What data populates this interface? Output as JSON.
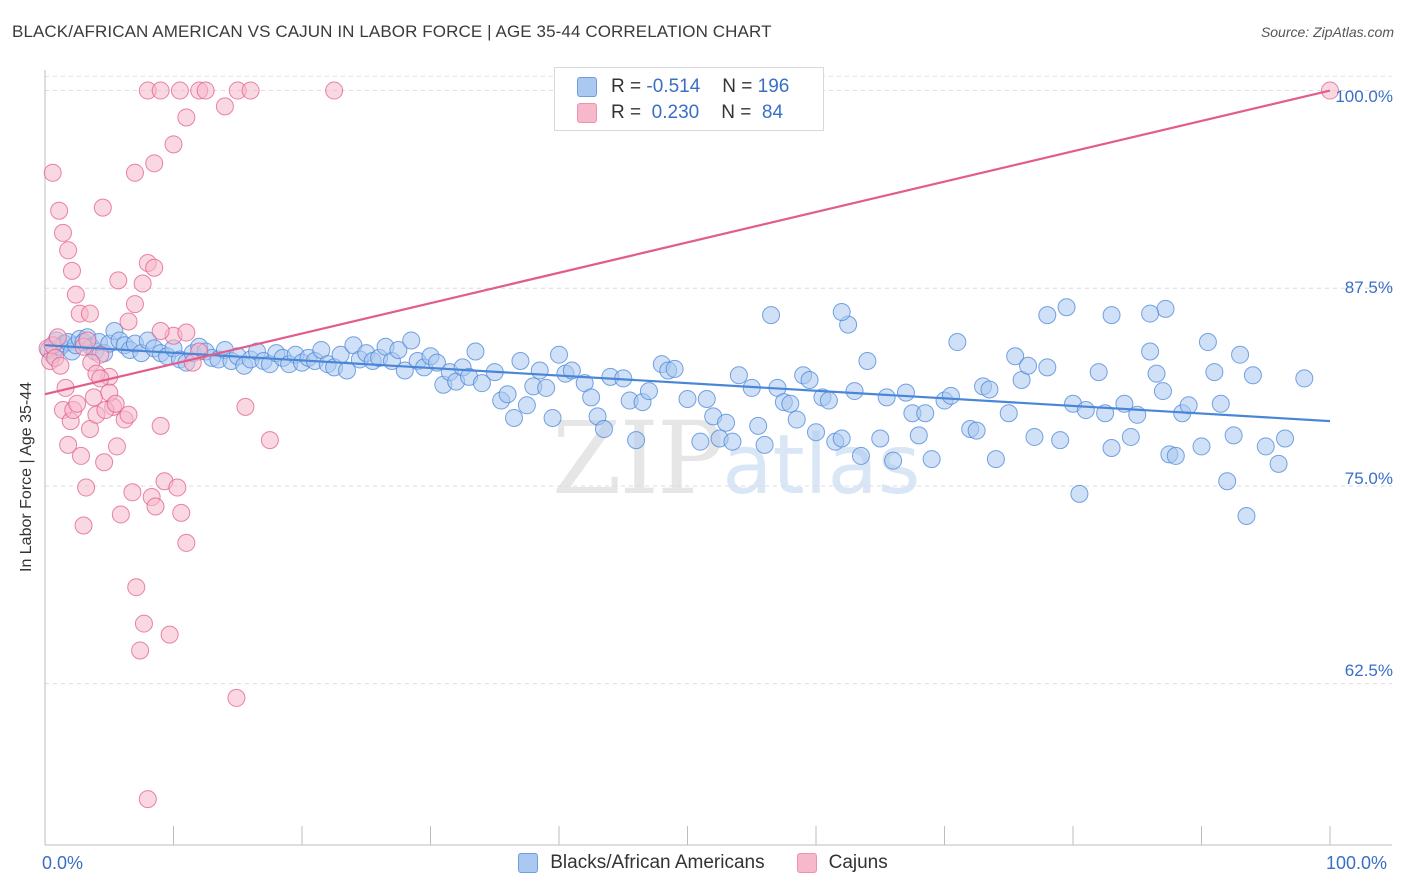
{
  "title": "BLACK/AFRICAN AMERICAN VS CAJUN IN LABOR FORCE | AGE 35-44 CORRELATION CHART",
  "source": "Source: ZipAtlas.com",
  "watermark": {
    "zip": "ZIP",
    "atlas": "atlas"
  },
  "legend": {
    "rows": [
      {
        "r_label": "R = ",
        "r_value": "-0.514",
        "n_label": "N = ",
        "n_value": "196",
        "color": "#aac8f0"
      },
      {
        "r_label": "R = ",
        "r_value": "0.230",
        "n_label": "N = ",
        "n_value": "84",
        "color": "#f6b8ca"
      }
    ]
  },
  "bottom_legend": [
    {
      "label": "Blacks/African Americans",
      "color": "#aac8f0"
    },
    {
      "label": "Cajuns",
      "color": "#f6b8ca"
    }
  ],
  "chart_data": {
    "type": "scatter",
    "title": "BLACK/AFRICAN AMERICAN VS CAJUN IN LABOR FORCE | AGE 35-44 CORRELATION CHART",
    "xlabel": "",
    "ylabel": "In Labor Force | Age 35-44",
    "xlim": [
      0,
      100
    ],
    "ylim": [
      52.3,
      101.3
    ],
    "x_tick_labels": [
      "0.0%",
      "100.0%"
    ],
    "y_ticks": [
      62.5,
      75.0,
      87.5,
      100.0
    ],
    "y_tick_labels": [
      "62.5%",
      "75.0%",
      "87.5%",
      "100.0%"
    ],
    "series": [
      {
        "name": "Blacks/African Americans",
        "color": "#4a86d8",
        "fill": "#aac8f0",
        "trend": {
          "x": [
            0,
            100
          ],
          "y": [
            83.9,
            79.1
          ]
        },
        "points": [
          [
            0.3,
            83.6
          ],
          [
            0.6,
            83.3
          ],
          [
            0.9,
            84.2
          ],
          [
            1.2,
            83.8
          ],
          [
            1.5,
            84.0
          ],
          [
            1.8,
            84.1
          ],
          [
            2.1,
            83.5
          ],
          [
            2.4,
            83.9
          ],
          [
            2.7,
            84.3
          ],
          [
            3.0,
            84.1
          ],
          [
            3.3,
            84.4
          ],
          [
            3.6,
            83.8
          ],
          [
            3.9,
            83.5
          ],
          [
            4.2,
            84.1
          ],
          [
            4.6,
            83.4
          ],
          [
            5.0,
            84.0
          ],
          [
            5.4,
            84.8
          ],
          [
            5.8,
            84.2
          ],
          [
            6.2,
            83.9
          ],
          [
            6.6,
            83.6
          ],
          [
            7.0,
            84.0
          ],
          [
            7.5,
            83.4
          ],
          [
            8.0,
            84.2
          ],
          [
            8.5,
            83.7
          ],
          [
            9.0,
            83.4
          ],
          [
            9.5,
            83.2
          ],
          [
            10.0,
            83.7
          ],
          [
            10.5,
            83.0
          ],
          [
            11.0,
            82.8
          ],
          [
            11.5,
            83.4
          ],
          [
            12.0,
            83.8
          ],
          [
            12.5,
            83.5
          ],
          [
            13.0,
            83.1
          ],
          [
            13.5,
            83.0
          ],
          [
            14.0,
            83.6
          ],
          [
            14.5,
            82.9
          ],
          [
            15.0,
            83.2
          ],
          [
            15.5,
            82.6
          ],
          [
            16.0,
            83.0
          ],
          [
            16.5,
            83.5
          ],
          [
            17.0,
            82.9
          ],
          [
            17.5,
            82.7
          ],
          [
            18.0,
            83.4
          ],
          [
            18.5,
            83.1
          ],
          [
            19.0,
            82.7
          ],
          [
            19.5,
            83.3
          ],
          [
            20.0,
            82.8
          ],
          [
            20.5,
            83.1
          ],
          [
            21.0,
            82.9
          ],
          [
            21.5,
            83.6
          ],
          [
            22.0,
            82.7
          ],
          [
            22.5,
            82.5
          ],
          [
            23.0,
            83.3
          ],
          [
            23.5,
            82.3
          ],
          [
            24.0,
            83.9
          ],
          [
            24.5,
            83.0
          ],
          [
            25.0,
            83.4
          ],
          [
            25.5,
            82.9
          ],
          [
            26.0,
            83.1
          ],
          [
            26.5,
            83.8
          ],
          [
            27.0,
            82.9
          ],
          [
            27.5,
            83.6
          ],
          [
            28.0,
            82.3
          ],
          [
            28.5,
            84.2
          ],
          [
            29.0,
            82.9
          ],
          [
            29.5,
            82.5
          ],
          [
            30.0,
            83.2
          ],
          [
            30.5,
            82.8
          ],
          [
            31.0,
            81.4
          ],
          [
            31.5,
            82.2
          ],
          [
            32.0,
            81.6
          ],
          [
            32.5,
            82.5
          ],
          [
            33.0,
            81.9
          ],
          [
            33.5,
            83.5
          ],
          [
            34.0,
            81.5
          ],
          [
            35.0,
            82.2
          ],
          [
            35.5,
            80.4
          ],
          [
            36.0,
            80.8
          ],
          [
            36.5,
            79.3
          ],
          [
            37.0,
            82.9
          ],
          [
            37.5,
            80.1
          ],
          [
            38.0,
            81.3
          ],
          [
            38.5,
            82.3
          ],
          [
            39.0,
            81.2
          ],
          [
            39.5,
            79.3
          ],
          [
            40.0,
            83.3
          ],
          [
            40.5,
            82.1
          ],
          [
            41.0,
            82.3
          ],
          [
            42.0,
            81.5
          ],
          [
            42.5,
            80.6
          ],
          [
            43.0,
            79.4
          ],
          [
            43.5,
            78.6
          ],
          [
            44.0,
            81.9
          ],
          [
            45.0,
            81.8
          ],
          [
            45.5,
            80.4
          ],
          [
            46.0,
            77.9
          ],
          [
            46.5,
            80.3
          ],
          [
            47.0,
            81.0
          ],
          [
            48.0,
            82.7
          ],
          [
            48.5,
            82.3
          ],
          [
            49.0,
            82.4
          ],
          [
            50.0,
            80.5
          ],
          [
            51.0,
            77.8
          ],
          [
            51.5,
            80.5
          ],
          [
            52.0,
            79.4
          ],
          [
            52.5,
            78.0
          ],
          [
            53.0,
            79.0
          ],
          [
            53.5,
            77.8
          ],
          [
            54.0,
            82.0
          ],
          [
            55.0,
            81.2
          ],
          [
            55.5,
            78.8
          ],
          [
            56.0,
            77.6
          ],
          [
            57.0,
            81.2
          ],
          [
            57.5,
            80.3
          ],
          [
            58.0,
            80.2
          ],
          [
            58.5,
            79.2
          ],
          [
            59.0,
            82.0
          ],
          [
            59.5,
            81.7
          ],
          [
            60.0,
            78.4
          ],
          [
            60.5,
            80.6
          ],
          [
            61.0,
            80.4
          ],
          [
            61.5,
            77.8
          ],
          [
            62.0,
            78.0
          ],
          [
            62.5,
            85.2
          ],
          [
            63.0,
            81.0
          ],
          [
            63.5,
            76.9
          ],
          [
            64.0,
            82.9
          ],
          [
            65.0,
            78.0
          ],
          [
            65.5,
            80.6
          ],
          [
            66.0,
            76.6
          ],
          [
            67.0,
            80.9
          ],
          [
            67.5,
            79.6
          ],
          [
            68.0,
            78.2
          ],
          [
            68.5,
            79.6
          ],
          [
            69.0,
            76.7
          ],
          [
            70.0,
            80.4
          ],
          [
            70.5,
            80.7
          ],
          [
            71.0,
            84.1
          ],
          [
            72.0,
            78.6
          ],
          [
            72.5,
            78.5
          ],
          [
            73.0,
            81.3
          ],
          [
            73.5,
            81.1
          ],
          [
            74.0,
            76.7
          ],
          [
            75.0,
            79.6
          ],
          [
            75.5,
            83.2
          ],
          [
            76.0,
            81.7
          ],
          [
            76.5,
            82.6
          ],
          [
            77.0,
            78.1
          ],
          [
            78.0,
            82.5
          ],
          [
            79.0,
            77.9
          ],
          [
            80.0,
            80.2
          ],
          [
            80.5,
            74.5
          ],
          [
            81.0,
            79.8
          ],
          [
            82.0,
            82.2
          ],
          [
            82.5,
            79.6
          ],
          [
            83.0,
            77.4
          ],
          [
            84.0,
            80.2
          ],
          [
            84.5,
            78.1
          ],
          [
            85.0,
            79.5
          ],
          [
            86.0,
            83.5
          ],
          [
            86.5,
            82.1
          ],
          [
            87.0,
            81.0
          ],
          [
            87.5,
            77.0
          ],
          [
            88.0,
            76.9
          ],
          [
            88.5,
            79.6
          ],
          [
            89.0,
            80.1
          ],
          [
            90.0,
            77.5
          ],
          [
            90.5,
            84.1
          ],
          [
            91.0,
            82.2
          ],
          [
            91.5,
            80.2
          ],
          [
            92.0,
            75.3
          ],
          [
            92.5,
            78.2
          ],
          [
            93.0,
            83.3
          ],
          [
            93.5,
            73.1
          ],
          [
            94.0,
            82.0
          ],
          [
            95.0,
            77.5
          ],
          [
            96.0,
            76.4
          ],
          [
            96.5,
            78.0
          ],
          [
            98.0,
            81.8
          ],
          [
            87.2,
            86.2
          ],
          [
            83.0,
            85.8
          ],
          [
            86.0,
            85.9
          ],
          [
            78.0,
            85.8
          ],
          [
            79.5,
            86.3
          ],
          [
            62.0,
            86.0
          ],
          [
            56.5,
            85.8
          ]
        ]
      },
      {
        "name": "Cajuns",
        "color": "#e25c8d",
        "fill": "#f6b8ca",
        "trend": {
          "x": [
            0,
            100
          ],
          "y": [
            80.8,
            100.0
          ]
        },
        "points": [
          [
            0.2,
            83.7
          ],
          [
            0.4,
            82.9
          ],
          [
            0.6,
            83.9
          ],
          [
            0.8,
            83.1
          ],
          [
            1.0,
            84.4
          ],
          [
            1.2,
            82.6
          ],
          [
            1.4,
            79.8
          ],
          [
            1.6,
            81.2
          ],
          [
            1.8,
            77.6
          ],
          [
            2.0,
            79.1
          ],
          [
            2.2,
            79.8
          ],
          [
            2.5,
            80.2
          ],
          [
            2.8,
            76.9
          ],
          [
            3.0,
            72.5
          ],
          [
            3.2,
            74.9
          ],
          [
            3.5,
            78.6
          ],
          [
            3.8,
            80.6
          ],
          [
            4.0,
            79.5
          ],
          [
            4.3,
            83.3
          ],
          [
            4.6,
            76.5
          ],
          [
            5.0,
            81.9
          ],
          [
            5.3,
            80.0
          ],
          [
            5.6,
            77.5
          ],
          [
            5.9,
            73.2
          ],
          [
            6.2,
            79.2
          ],
          [
            6.5,
            79.5
          ],
          [
            6.8,
            74.6
          ],
          [
            7.1,
            68.6
          ],
          [
            7.4,
            64.6
          ],
          [
            7.7,
            66.3
          ],
          [
            8.0,
            55.2
          ],
          [
            8.3,
            74.3
          ],
          [
            8.6,
            73.7
          ],
          [
            9.0,
            78.8
          ],
          [
            9.3,
            75.3
          ],
          [
            9.7,
            65.6
          ],
          [
            10.0,
            84.5
          ],
          [
            10.3,
            74.9
          ],
          [
            10.6,
            73.3
          ],
          [
            11.0,
            71.4
          ],
          [
            12.0,
            83.5
          ],
          [
            14.9,
            61.6
          ],
          [
            15.6,
            80.0
          ],
          [
            17.5,
            77.9
          ],
          [
            0.6,
            94.8
          ],
          [
            1.1,
            92.4
          ],
          [
            1.4,
            91.0
          ],
          [
            1.8,
            89.9
          ],
          [
            2.1,
            88.6
          ],
          [
            2.4,
            87.1
          ],
          [
            2.7,
            85.9
          ],
          [
            3.0,
            83.8
          ],
          [
            3.3,
            84.2
          ],
          [
            3.6,
            82.8
          ],
          [
            4.0,
            82.1
          ],
          [
            4.3,
            81.8
          ],
          [
            4.7,
            79.8
          ],
          [
            5.0,
            80.9
          ],
          [
            5.5,
            80.2
          ],
          [
            6.5,
            85.4
          ],
          [
            7.0,
            86.5
          ],
          [
            7.6,
            87.8
          ],
          [
            8.0,
            89.1
          ],
          [
            8.5,
            88.8
          ],
          [
            9.0,
            84.8
          ],
          [
            11.0,
            84.7
          ],
          [
            11.5,
            82.8
          ],
          [
            3.5,
            85.9
          ],
          [
            4.5,
            92.6
          ],
          [
            5.7,
            88.0
          ],
          [
            8.5,
            95.4
          ],
          [
            10.0,
            96.6
          ],
          [
            11.0,
            98.3
          ],
          [
            8.0,
            100.0
          ],
          [
            9.0,
            100.0
          ],
          [
            10.5,
            100.0
          ],
          [
            12.0,
            100.0
          ],
          [
            12.5,
            100.0
          ],
          [
            15.0,
            100.0
          ],
          [
            22.5,
            100.0
          ],
          [
            14.0,
            99.0
          ],
          [
            16.0,
            100.0
          ],
          [
            7.0,
            94.8
          ],
          [
            100.0,
            100.0
          ]
        ]
      }
    ]
  }
}
